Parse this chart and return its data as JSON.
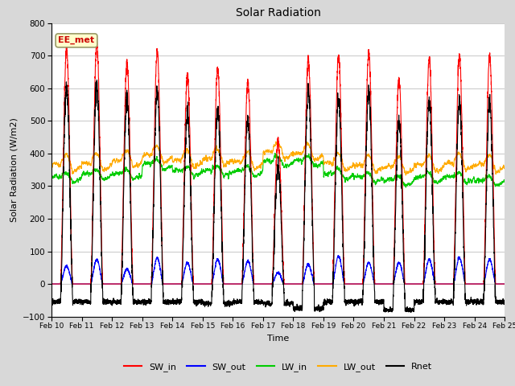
{
  "title": "Solar Radiation",
  "xlabel": "Time",
  "ylabel": "Solar Radiation (W/m2)",
  "ylim": [
    -100,
    800
  ],
  "yticks": [
    -100,
    0,
    100,
    200,
    300,
    400,
    500,
    600,
    700,
    800
  ],
  "date_labels": [
    "Feb 10",
    "Feb 11",
    "Feb 12",
    "Feb 13",
    "Feb 14",
    "Feb 15",
    "Feb 16",
    "Feb 17",
    "Feb 18",
    "Feb 19",
    "Feb 20",
    "Feb 21",
    "Feb 22",
    "Feb 23",
    "Feb 24",
    "Feb 25"
  ],
  "legend_labels": [
    "SW_in",
    "SW_out",
    "LW_in",
    "LW_out",
    "Rnet"
  ],
  "legend_colors": [
    "#ff0000",
    "#0000ff",
    "#00cc00",
    "#ffaa00",
    "#000000"
  ],
  "station_label": "EE_met",
  "station_box_facecolor": "#ffffcc",
  "station_box_edgecolor": "#999966",
  "fig_bg_color": "#d8d8d8",
  "plot_bg_color": "#ffffff",
  "grid_color": "#cccccc",
  "n_days": 15,
  "points_per_day": 288,
  "SW_in_peaks": [
    720,
    740,
    680,
    710,
    640,
    660,
    620,
    440,
    690,
    700,
    710,
    625,
    690,
    700,
    700
  ],
  "SW_out_peaks": [
    55,
    75,
    45,
    80,
    65,
    75,
    70,
    35,
    60,
    85,
    65,
    65,
    75,
    80,
    75
  ],
  "LW_in_base": [
    320,
    330,
    330,
    360,
    340,
    340,
    340,
    370,
    370,
    330,
    320,
    310,
    320,
    320,
    310
  ],
  "LW_out_base": [
    355,
    360,
    370,
    385,
    370,
    375,
    365,
    395,
    390,
    360,
    355,
    350,
    355,
    360,
    355
  ],
  "Rnet_night": [
    -55,
    -55,
    -55,
    -55,
    -55,
    -60,
    -55,
    -60,
    -75,
    -55,
    -55,
    -80,
    -55,
    -55,
    -55
  ]
}
